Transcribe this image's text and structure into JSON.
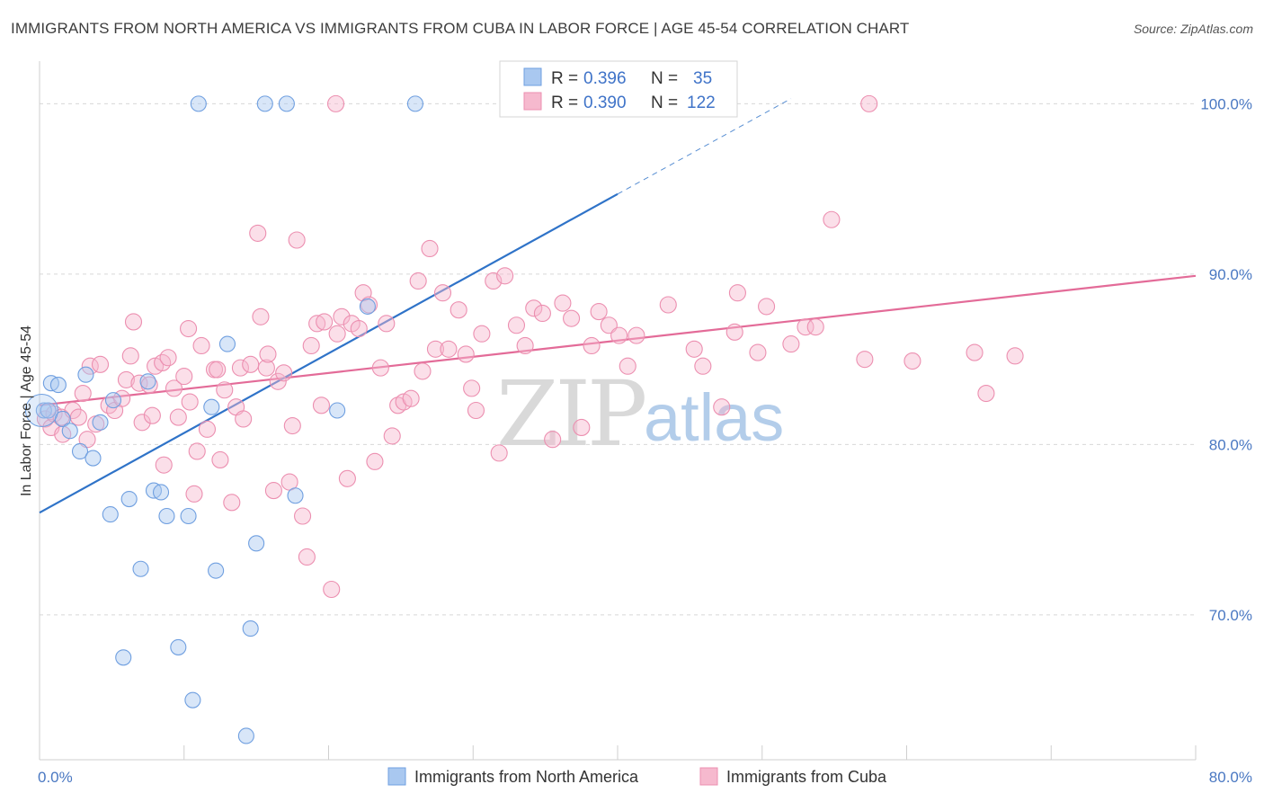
{
  "title": "IMMIGRANTS FROM NORTH AMERICA VS IMMIGRANTS FROM CUBA IN LABOR FORCE | AGE 45-54 CORRELATION CHART",
  "source_prefix": "Source: ",
  "source_name": "ZipAtlas.com",
  "watermark": {
    "zip": "ZIP",
    "atlas": "atlas"
  },
  "colors": {
    "blue_fill": "#a9c8f0",
    "blue_stroke": "#6f9fe0",
    "blue_line": "#2f73c8",
    "pink_fill": "#f6b9ce",
    "pink_stroke": "#ec8fb0",
    "pink_line": "#e36b98",
    "axis_text": "#4a78c2",
    "grid": "#d8d8d8"
  },
  "legend": {
    "blue": {
      "r_label": "R = ",
      "r_value": "0.396",
      "n_label": "N = ",
      "n_value": "35"
    },
    "pink": {
      "r_label": "R = ",
      "r_value": "0.390",
      "n_label": "N = ",
      "n_value": "122"
    }
  },
  "chart_data": {
    "type": "scatter",
    "ylabel": "In Labor Force | Age 45-54",
    "xlabel": "",
    "xlim": [
      0,
      80
    ],
    "ylim": [
      61.5,
      102.5
    ],
    "x_tick_labels": [
      "0.0%",
      "80.0%"
    ],
    "y_ticks": [
      {
        "value": 70,
        "label": "70.0%"
      },
      {
        "value": 80,
        "label": "80.0%"
      },
      {
        "value": 90,
        "label": "90.0%"
      },
      {
        "value": 100,
        "label": "100.0%"
      }
    ],
    "grid": true,
    "legend_position": "top-center",
    "series": [
      {
        "name": "Immigrants from North America",
        "color": "blue",
        "trend": {
          "x0": 0,
          "y0": 76.0,
          "x1": 40,
          "y1": 94.7,
          "dashed_to_x": 52.0,
          "dashed_to_y": 100.3
        },
        "points": [
          [
            0.3,
            82.0
          ],
          [
            0.8,
            83.6
          ],
          [
            1.3,
            83.5
          ],
          [
            1.6,
            81.5
          ],
          [
            2.1,
            80.8
          ],
          [
            2.8,
            79.6
          ],
          [
            3.2,
            84.1
          ],
          [
            3.7,
            79.2
          ],
          [
            4.2,
            81.3
          ],
          [
            5.1,
            82.6
          ],
          [
            6.2,
            76.8
          ],
          [
            4.9,
            75.9
          ],
          [
            7.0,
            72.7
          ],
          [
            7.5,
            83.7
          ],
          [
            7.9,
            77.3
          ],
          [
            8.4,
            77.2
          ],
          [
            8.8,
            75.8
          ],
          [
            10.3,
            75.8
          ],
          [
            11.9,
            82.2
          ],
          [
            12.2,
            72.6
          ],
          [
            13.0,
            85.9
          ],
          [
            15.0,
            74.2
          ],
          [
            17.7,
            77.0
          ],
          [
            20.6,
            82.0
          ],
          [
            22.7,
            88.1
          ],
          [
            5.8,
            67.5
          ],
          [
            9.6,
            68.1
          ],
          [
            14.6,
            69.2
          ],
          [
            10.6,
            65.0
          ],
          [
            14.3,
            62.9
          ],
          [
            11.0,
            100.0
          ],
          [
            15.6,
            100.0
          ],
          [
            17.1,
            100.0
          ],
          [
            26.0,
            100.0
          ],
          [
            0.6,
            82.0
          ]
        ]
      },
      {
        "name": "Immigrants from Cuba",
        "color": "pink",
        "trend": {
          "x0": 0,
          "y0": 82.3,
          "x1": 80,
          "y1": 89.9
        },
        "points": [
          [
            0.4,
            81.5
          ],
          [
            0.8,
            81.0
          ],
          [
            1.0,
            81.8
          ],
          [
            1.5,
            81.6
          ],
          [
            1.6,
            80.6
          ],
          [
            2.3,
            82.0
          ],
          [
            2.7,
            81.6
          ],
          [
            3.0,
            83.0
          ],
          [
            3.3,
            80.3
          ],
          [
            3.5,
            84.6
          ],
          [
            3.9,
            81.2
          ],
          [
            4.2,
            84.7
          ],
          [
            4.8,
            82.3
          ],
          [
            5.2,
            82.0
          ],
          [
            5.7,
            82.7
          ],
          [
            6.0,
            83.8
          ],
          [
            6.3,
            85.2
          ],
          [
            6.5,
            87.2
          ],
          [
            6.9,
            83.6
          ],
          [
            7.1,
            81.3
          ],
          [
            7.6,
            83.5
          ],
          [
            7.8,
            81.7
          ],
          [
            8.0,
            84.6
          ],
          [
            8.5,
            84.8
          ],
          [
            8.6,
            78.8
          ],
          [
            8.9,
            85.1
          ],
          [
            9.3,
            83.3
          ],
          [
            9.6,
            81.6
          ],
          [
            10.0,
            84.0
          ],
          [
            10.3,
            86.8
          ],
          [
            10.4,
            82.5
          ],
          [
            10.7,
            77.1
          ],
          [
            10.9,
            79.6
          ],
          [
            11.2,
            85.8
          ],
          [
            11.6,
            80.9
          ],
          [
            12.1,
            84.4
          ],
          [
            12.3,
            84.4
          ],
          [
            12.5,
            79.1
          ],
          [
            12.8,
            83.2
          ],
          [
            13.3,
            76.6
          ],
          [
            13.6,
            82.2
          ],
          [
            13.9,
            84.5
          ],
          [
            14.1,
            81.5
          ],
          [
            14.6,
            84.7
          ],
          [
            15.1,
            92.4
          ],
          [
            15.3,
            87.5
          ],
          [
            15.7,
            84.5
          ],
          [
            15.8,
            85.3
          ],
          [
            16.2,
            77.3
          ],
          [
            16.5,
            83.7
          ],
          [
            16.9,
            84.2
          ],
          [
            17.3,
            77.8
          ],
          [
            17.5,
            81.1
          ],
          [
            17.8,
            92.0
          ],
          [
            18.2,
            75.8
          ],
          [
            18.5,
            73.4
          ],
          [
            18.8,
            85.8
          ],
          [
            19.2,
            87.1
          ],
          [
            19.5,
            82.3
          ],
          [
            19.7,
            87.2
          ],
          [
            20.2,
            71.5
          ],
          [
            20.6,
            86.5
          ],
          [
            20.9,
            87.5
          ],
          [
            21.3,
            78.0
          ],
          [
            21.6,
            87.1
          ],
          [
            22.1,
            86.8
          ],
          [
            22.4,
            88.9
          ],
          [
            22.8,
            88.2
          ],
          [
            23.2,
            79.0
          ],
          [
            23.6,
            84.5
          ],
          [
            24.0,
            87.1
          ],
          [
            24.4,
            80.5
          ],
          [
            24.8,
            82.3
          ],
          [
            25.2,
            82.5
          ],
          [
            25.7,
            82.7
          ],
          [
            26.2,
            89.6
          ],
          [
            26.5,
            84.3
          ],
          [
            27.0,
            91.5
          ],
          [
            27.4,
            85.6
          ],
          [
            27.9,
            88.9
          ],
          [
            28.3,
            85.6
          ],
          [
            29.0,
            87.9
          ],
          [
            29.5,
            85.3
          ],
          [
            29.9,
            83.3
          ],
          [
            30.2,
            82.0
          ],
          [
            30.6,
            86.5
          ],
          [
            31.4,
            89.6
          ],
          [
            31.8,
            79.5
          ],
          [
            32.2,
            89.9
          ],
          [
            33.0,
            87.0
          ],
          [
            33.6,
            85.8
          ],
          [
            34.2,
            88.0
          ],
          [
            34.8,
            87.7
          ],
          [
            35.5,
            80.3
          ],
          [
            36.2,
            88.3
          ],
          [
            36.8,
            87.4
          ],
          [
            37.5,
            81.0
          ],
          [
            38.2,
            85.8
          ],
          [
            38.7,
            87.8
          ],
          [
            39.4,
            87.0
          ],
          [
            40.1,
            86.4
          ],
          [
            40.7,
            84.6
          ],
          [
            41.3,
            86.4
          ],
          [
            43.5,
            88.2
          ],
          [
            45.3,
            85.6
          ],
          [
            45.9,
            84.6
          ],
          [
            47.2,
            82.2
          ],
          [
            48.1,
            86.6
          ],
          [
            48.3,
            88.9
          ],
          [
            49.7,
            85.4
          ],
          [
            50.3,
            88.1
          ],
          [
            52.0,
            85.9
          ],
          [
            53.0,
            86.9
          ],
          [
            53.7,
            86.9
          ],
          [
            57.1,
            85.0
          ],
          [
            60.4,
            84.9
          ],
          [
            64.7,
            85.4
          ],
          [
            65.5,
            83.0
          ],
          [
            67.5,
            85.2
          ],
          [
            54.8,
            93.2
          ],
          [
            20.5,
            100.0
          ],
          [
            57.4,
            100.0
          ]
        ]
      }
    ]
  }
}
